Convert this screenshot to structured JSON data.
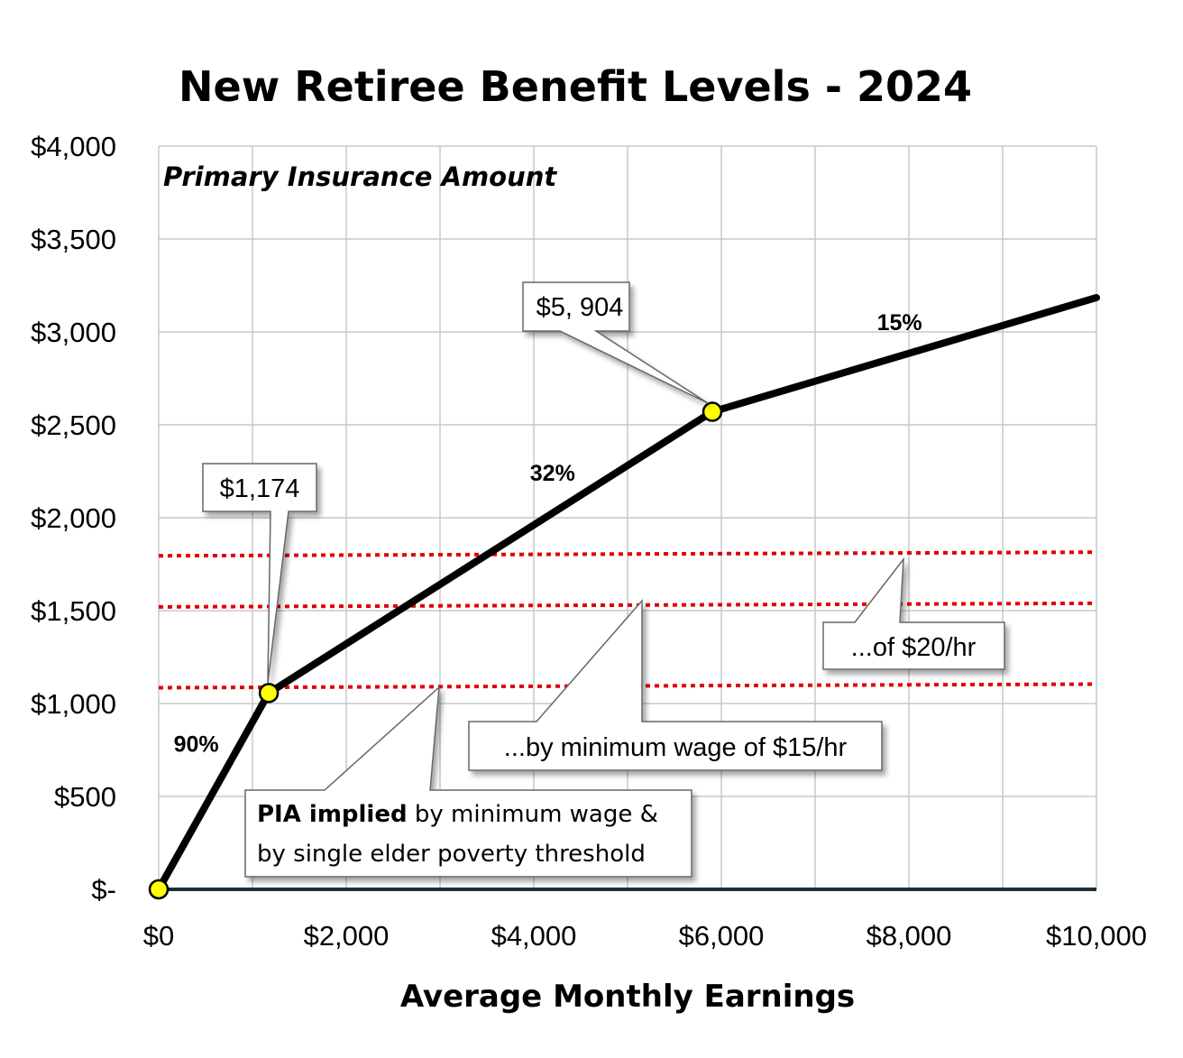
{
  "chart_data": {
    "type": "line",
    "title": "New Retiree Benefit Levels - 2024",
    "xlabel": "Average Monthly Earnings",
    "ylabel": "Primary Insurance Amount",
    "xlim": [
      0,
      10000
    ],
    "ylim": [
      0,
      4000
    ],
    "grid": true,
    "x_ticks": [
      0,
      1000,
      2000,
      3000,
      4000,
      5000,
      6000,
      7000,
      8000,
      9000,
      10000
    ],
    "x_tick_labels": [
      {
        "value": 0,
        "label": "$0"
      },
      {
        "value": 2000,
        "label": "$2,000"
      },
      {
        "value": 4000,
        "label": "$4,000"
      },
      {
        "value": 6000,
        "label": "$6,000"
      },
      {
        "value": 8000,
        "label": "$8,000"
      },
      {
        "value": 10000,
        "label": "$10,000"
      }
    ],
    "y_tick_labels": [
      {
        "value": 0,
        "label": "$-"
      },
      {
        "value": 500,
        "label": "$500"
      },
      {
        "value": 1000,
        "label": "$1,000"
      },
      {
        "value": 1500,
        "label": "$1,500"
      },
      {
        "value": 2000,
        "label": "$2,000"
      },
      {
        "value": 2500,
        "label": "$2,500"
      },
      {
        "value": 3000,
        "label": "$3,000"
      },
      {
        "value": 3500,
        "label": "$3,500"
      },
      {
        "value": 4000,
        "label": "$4,000"
      }
    ],
    "series": [
      {
        "color": "#000000",
        "x": [
          0,
          1174,
          5904,
          10000
        ],
        "y": [
          0,
          1056.6,
          2570.2,
          3184.6
        ]
      }
    ],
    "bend_points": [
      {
        "x": 0,
        "y": 0
      },
      {
        "x": 1174,
        "y": 1056.6
      },
      {
        "x": 5904,
        "y": 2570.2
      }
    ],
    "reference_lines": [
      {
        "y": 1795,
        "color": "#e00000"
      },
      {
        "y": 1520,
        "color": "#e00000"
      },
      {
        "y": 1085,
        "color": "#e00000"
      }
    ],
    "rate_labels": [
      {
        "text": "90%",
        "x": 400,
        "y": 740
      },
      {
        "text": "32%",
        "x": 4200,
        "y": 2200
      },
      {
        "text": "15%",
        "x": 7900,
        "y": 3010
      }
    ],
    "callouts": [
      {
        "text": "$1,174"
      },
      {
        "text": "$5, 904"
      },
      {
        "text": "...of $20/hr"
      },
      {
        "text": "...by minimum wage of $15/hr"
      }
    ],
    "note": {
      "bold": "PIA implied",
      "line1_rest": " by minimum wage &",
      "line2": "by single elder poverty threshold"
    },
    "colors": {
      "line": "#000000",
      "marker_fill": "#ffff00",
      "reference": "#e00000",
      "grid": "#c8c8c8",
      "baseline": "#1c2f3a"
    }
  }
}
